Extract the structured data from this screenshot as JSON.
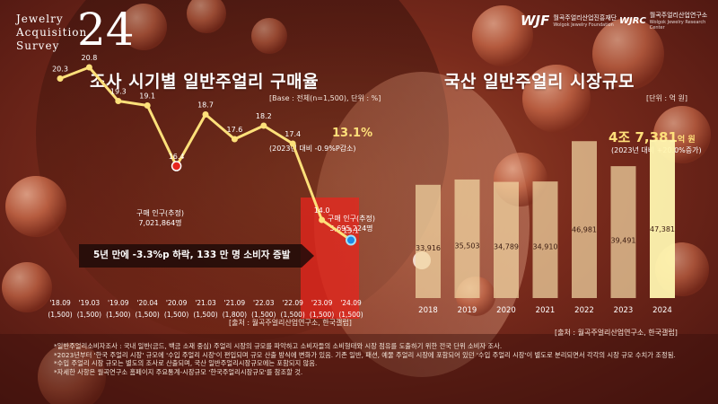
{
  "logo": {
    "words": [
      "Jewelry",
      "Acquisition",
      "Survey"
    ],
    "number": "24"
  },
  "orgs": [
    {
      "mark": "WJF",
      "name": "월곡주얼리산업진흥재단",
      "sub": "Wolgok Jewelry Foundation"
    },
    {
      "mark": "WJRC",
      "name": "월곡주얼리산업연구소",
      "sub": "Wolgok Jewelry Research Center"
    }
  ],
  "left": {
    "title": "조사 시기별 일반주얼리 구매율",
    "base_note": "[Base : 전체(n=1,500), 단위 : %]",
    "source": "[출처 : 월곡주얼리산업연구소, 한국갤럽]",
    "highlight": {
      "value": "13.1%",
      "sub": "(2023년 대비 -0.9%P감소)"
    },
    "annotations": [
      {
        "line1": "구매 인구(추정)",
        "line2": "7,021,864명"
      },
      {
        "line1": "구매 인구(추정)",
        "line2": "5,695,224명"
      }
    ],
    "banner": "5년 만에 -3.3%p 하락, 133 만 명 소비자 증발"
  },
  "right": {
    "title": "국산 일반주얼리 시장규모",
    "unit": "[단위 : 억 원]",
    "source": "[출처 : 월곡주얼리산업연구소, 한국갤럽]",
    "highlight": {
      "main": "4조 7,381",
      "suffix": "억 원",
      "sub": "(2023년 대비 +20.0%증가)"
    }
  },
  "notes": [
    "*일반주얼리소비자조사 : 국내 일반(금드, 백금 소재 중심) 주얼리 시장의 규모를 파악하고 소비자들의 소비형태와 시장 점유를 도출하기 위한 전국 단위 소비자 조사.",
    "*2023년부터 '한국 주얼리 시장' 규모에 '수입 주얼리 시장'이 편입되며 규모 산출 방식에 변화가 있음. 기존 일반, 패션, 예물 주얼리 시장에 포함되어 있던 '수입 주얼리 시장'이 별도로 분리되면서 각각의 시장 규모 수치가 조정됨.",
    "*수입 주얼리 시장 규모는 별도의 조사로 산출되며, 국산 일반주얼리시장규모에는 포함되지 않음.",
    "*자세한 사항은 월곡연구소 홈페이지 주요통계-시장규모 '한국주얼리시장규모'를 참조할 것."
  ],
  "colors": {
    "line": "#fde07a",
    "bar": "#f2d7a4",
    "bar_highlight": "#fff5b0",
    "accent_red": "#e8261e",
    "gold": "#ffe07a"
  },
  "chart_data": [
    {
      "type": "line",
      "title": "조사 시기별 일반주얼리 구매율",
      "ylabel": "%",
      "x": [
        "'18.09",
        "'19.03",
        "'19.09",
        "'20.04",
        "'20.09",
        "'21.03",
        "'21.09",
        "'22.03",
        "'22.09",
        "'23.09",
        "'24.09"
      ],
      "x_sub": [
        "(1,500)",
        "(1,500)",
        "(1,500)",
        "(1,500)",
        "(1,500)",
        "(1,500)",
        "(1,800)",
        "(1,500)",
        "(1,500)",
        "(1,500)",
        "(1,500)"
      ],
      "values": [
        20.3,
        20.8,
        19.3,
        19.1,
        16.4,
        18.7,
        17.6,
        18.2,
        17.4,
        14.0,
        13.1
      ],
      "ylim": [
        10,
        22
      ]
    },
    {
      "type": "bar",
      "title": "국산 일반주얼리 시장규모",
      "ylabel": "억 원",
      "categories": [
        "2018",
        "2019",
        "2020",
        "2021",
        "2022",
        "2023",
        "2024"
      ],
      "values": [
        33916,
        35503,
        34789,
        34910,
        46981,
        39491,
        47381
      ],
      "value_labels": [
        "33,916",
        "35,503",
        "34,789",
        "34,910",
        "46,981",
        "39,491",
        "47,381"
      ],
      "ylim": [
        0,
        50000
      ]
    }
  ]
}
